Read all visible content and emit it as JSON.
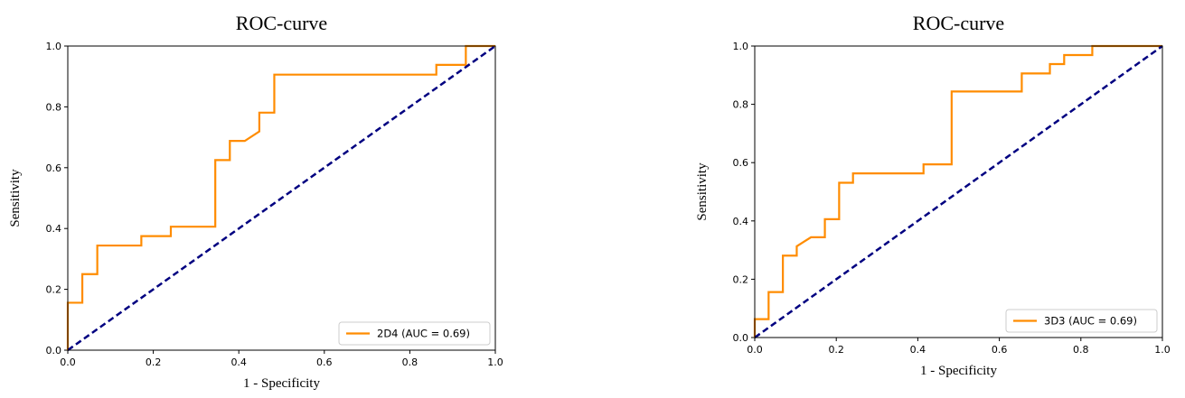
{
  "colors": {
    "roc": "#ff8c00",
    "diagonal": "#000080",
    "axis": "#000000"
  },
  "chart_data": [
    {
      "type": "line",
      "title": "ROC-curve",
      "xlabel": "1 - Specificity",
      "ylabel": "Sensitivity",
      "xlim": [
        0.0,
        1.0
      ],
      "ylim": [
        0.0,
        1.0
      ],
      "xticks": [
        "0.0",
        "0.2",
        "0.4",
        "0.6",
        "0.8",
        "1.0"
      ],
      "yticks": [
        "0.0",
        "0.2",
        "0.4",
        "0.6",
        "0.8",
        "1.0"
      ],
      "grid": false,
      "legend_position": "lower-right",
      "series": [
        {
          "name": "2D4 (AUC = 0.69)",
          "style": "solid",
          "x": [
            0.0,
            0.0,
            0.034,
            0.034,
            0.069,
            0.069,
            0.172,
            0.172,
            0.241,
            0.241,
            0.345,
            0.345,
            0.379,
            0.379,
            0.414,
            0.448,
            0.448,
            0.483,
            0.483,
            0.862,
            0.862,
            0.931,
            0.931,
            1.0
          ],
          "y": [
            0.0,
            0.156,
            0.156,
            0.25,
            0.25,
            0.344,
            0.344,
            0.375,
            0.375,
            0.406,
            0.406,
            0.625,
            0.625,
            0.688,
            0.688,
            0.719,
            0.781,
            0.781,
            0.906,
            0.906,
            0.938,
            0.938,
            1.0,
            1.0
          ]
        },
        {
          "name": "",
          "style": "dashed",
          "x": [
            0.0,
            1.0
          ],
          "y": [
            0.0,
            1.0
          ]
        }
      ]
    },
    {
      "type": "line",
      "title": "ROC-curve",
      "xlabel": "1 - Specificity",
      "ylabel": "Sensitivity",
      "xlim": [
        0.0,
        1.0
      ],
      "ylim": [
        0.0,
        1.0
      ],
      "xticks": [
        "0.0",
        "0.2",
        "0.4",
        "0.6",
        "0.8",
        "1.0"
      ],
      "yticks": [
        "0.0",
        "0.2",
        "0.4",
        "0.6",
        "0.8",
        "1.0"
      ],
      "grid": false,
      "legend_position": "lower-right",
      "series": [
        {
          "name": "3D3 (AUC = 0.69)",
          "style": "solid",
          "x": [
            0.0,
            0.0,
            0.034,
            0.034,
            0.069,
            0.069,
            0.103,
            0.103,
            0.138,
            0.172,
            0.172,
            0.207,
            0.207,
            0.241,
            0.241,
            0.414,
            0.414,
            0.483,
            0.483,
            0.655,
            0.655,
            0.724,
            0.724,
            0.759,
            0.759,
            0.828,
            0.828,
            1.0
          ],
          "y": [
            0.0,
            0.063,
            0.063,
            0.156,
            0.156,
            0.281,
            0.281,
            0.313,
            0.344,
            0.344,
            0.406,
            0.406,
            0.531,
            0.531,
            0.563,
            0.563,
            0.594,
            0.594,
            0.844,
            0.844,
            0.906,
            0.906,
            0.938,
            0.938,
            0.969,
            0.969,
            1.0,
            1.0
          ]
        },
        {
          "name": "",
          "style": "dashed",
          "x": [
            0.0,
            1.0
          ],
          "y": [
            0.0,
            1.0
          ]
        }
      ]
    }
  ]
}
